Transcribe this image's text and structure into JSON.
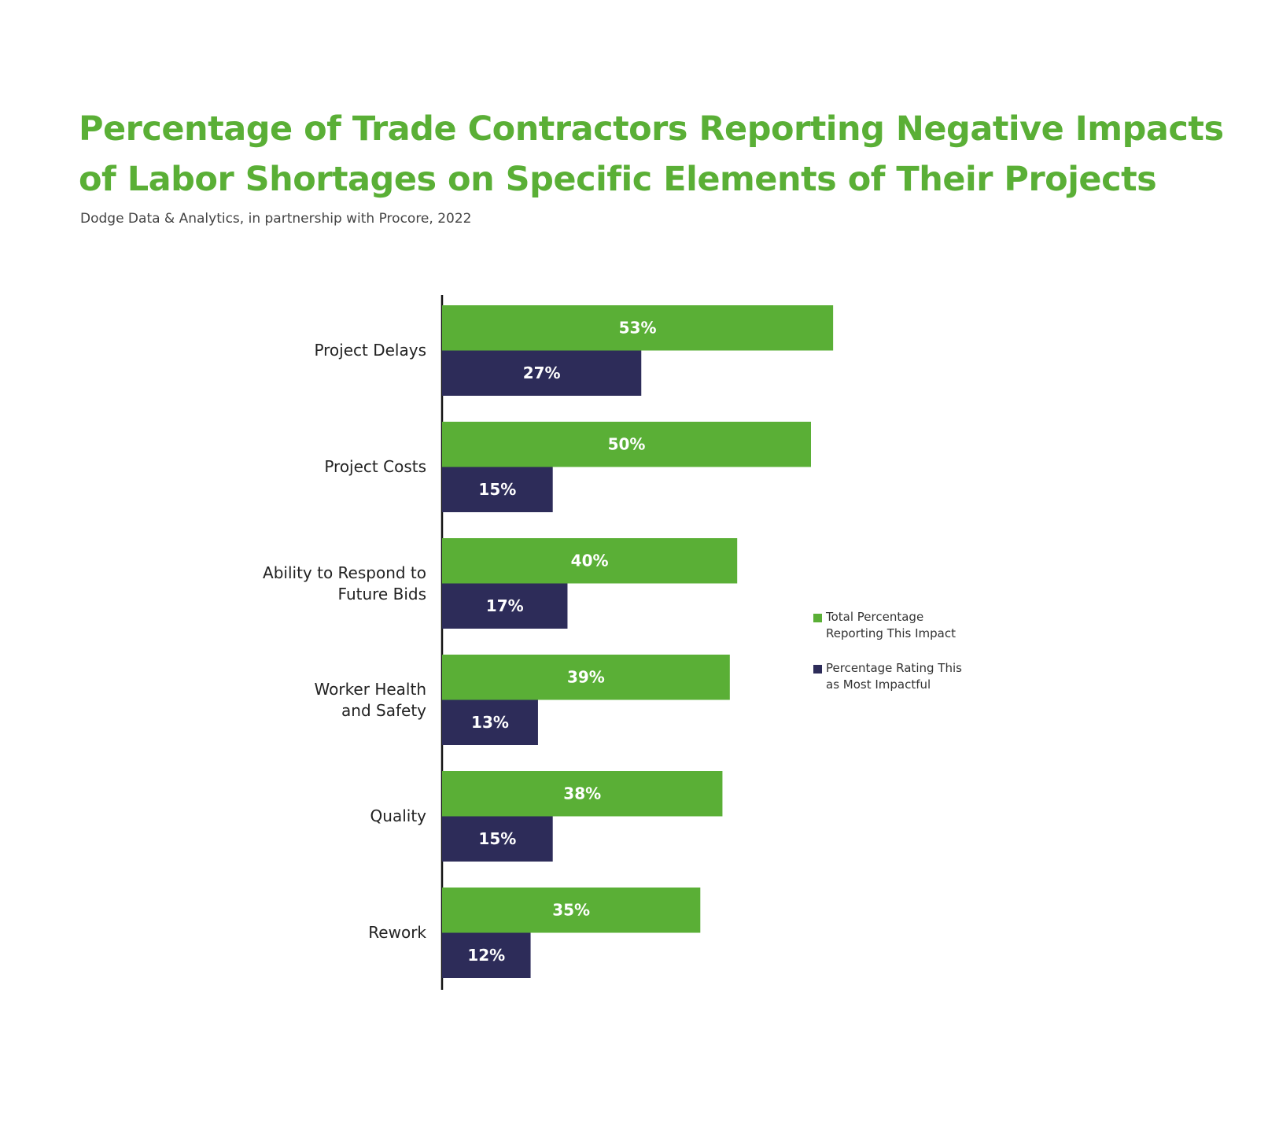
{
  "chart_data": {
    "type": "bar",
    "orientation": "horizontal",
    "title": "Percentage of Trade Contractors Reporting Negative Impacts\nof Labor Shortages on Specific Elements of Their Projects",
    "subtitle": "Dodge Data & Analytics, in partnership with Procore, 2022",
    "categories": [
      "Project Delays",
      "Project Costs",
      "Ability to Respond to\nFuture Bids",
      "Worker Health\nand Safety",
      "Quality",
      "Rework"
    ],
    "series": [
      {
        "name": "Total Percentage\nReporting This Impact",
        "color": "#5aaf36",
        "values": [
          53,
          50,
          40,
          39,
          38,
          35
        ],
        "value_labels": [
          "53%",
          "50%",
          "40%",
          "39%",
          "38%",
          "35%"
        ]
      },
      {
        "name": "Percentage Rating This\nas Most Impactful",
        "color": "#2d2c59",
        "values": [
          27,
          15,
          17,
          13,
          15,
          12
        ],
        "value_labels": [
          "27%",
          "15%",
          "17%",
          "13%",
          "15%",
          "12%"
        ]
      }
    ],
    "title_color": "#5aaf36"
  }
}
